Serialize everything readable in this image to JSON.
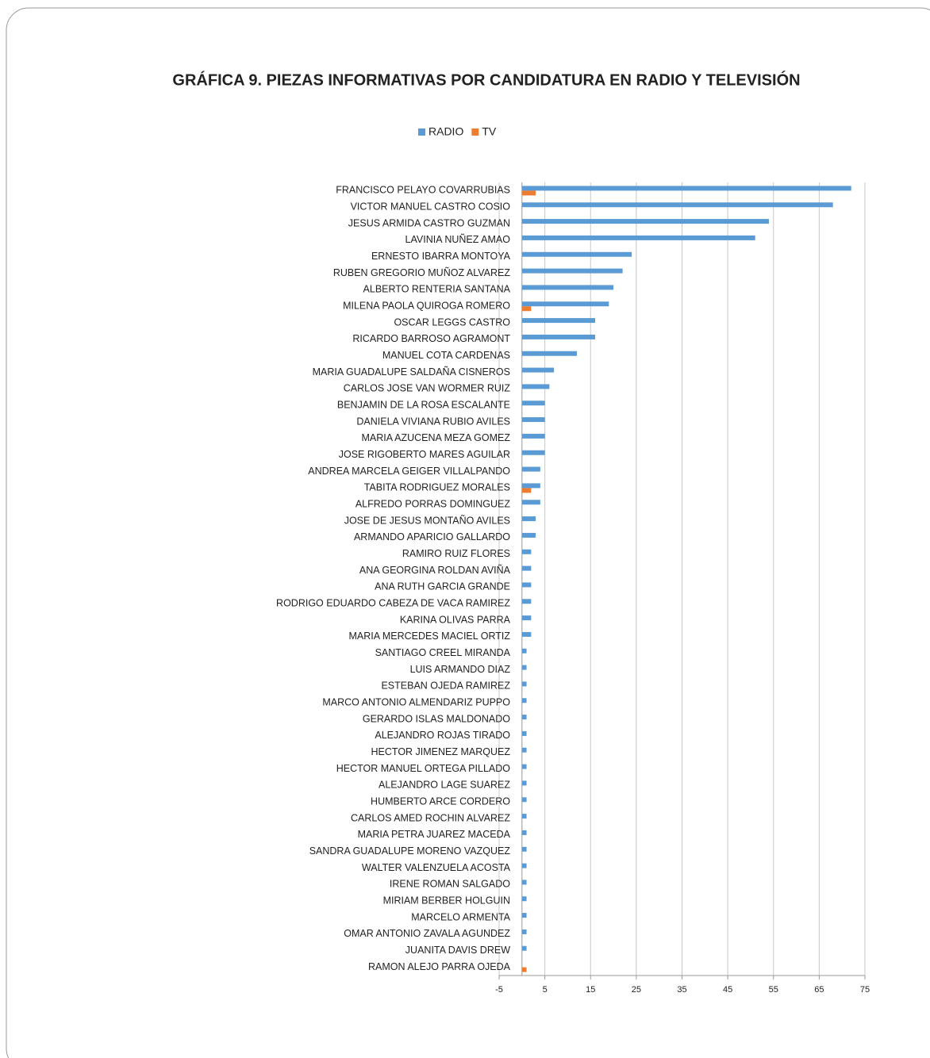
{
  "chart_data": {
    "type": "hbar",
    "title": "GRÁFICA 9. PIEZAS INFORMATIVAS POR CANDIDATURA EN RADIO Y TELEVISIÓN",
    "categories": [
      "FRANCISCO PELAYO COVARRUBIAS",
      "VICTOR MANUEL CASTRO COSIO",
      "JESUS ARMIDA CASTRO GUZMAN",
      "LAVINIA NUÑEZ AMAO",
      "ERNESTO IBARRA MONTOYA",
      "RUBEN GREGORIO MUÑOZ ALVAREZ",
      "ALBERTO RENTERIA SANTANA",
      "MILENA PAOLA QUIROGA ROMERO",
      "OSCAR LEGGS CASTRO",
      "RICARDO BARROSO AGRAMONT",
      "MANUEL COTA CARDENAS",
      "MARIA GUADALUPE SALDAÑA CISNEROS",
      "CARLOS JOSE VAN WORMER RUIZ",
      "BENJAMIN DE LA ROSA ESCALANTE",
      "DANIELA VIVIANA RUBIO AVILES",
      "MARIA AZUCENA MEZA GOMEZ",
      "JOSE RIGOBERTO MARES AGUILAR",
      "ANDREA MARCELA GEIGER VILLALPANDO",
      "TABITA RODRIGUEZ MORALES",
      "ALFREDO PORRAS DOMINGUEZ",
      "JOSE DE JESUS MONTAÑO AVILES",
      "ARMANDO APARICIO GALLARDO",
      "RAMIRO RUIZ FLORES",
      "ANA GEORGINA ROLDAN AVIÑA",
      "ANA RUTH GARCIA GRANDE",
      "RODRIGO EDUARDO CABEZA DE VACA RAMIREZ",
      "KARINA OLIVAS PARRA",
      "MARIA MERCEDES MACIEL ORTIZ",
      "SANTIAGO CREEL MIRANDA",
      "LUIS ARMANDO DIAZ",
      "ESTEBAN OJEDA RAMIREZ",
      "MARCO ANTONIO ALMENDARIZ PUPPO",
      "GERARDO ISLAS MALDONADO",
      "ALEJANDRO ROJAS TIRADO",
      "HECTOR JIMENEZ MARQUEZ",
      "HECTOR MANUEL ORTEGA PILLADO",
      "ALEJANDRO LAGE SUAREZ",
      "HUMBERTO ARCE CORDERO",
      "CARLOS AMED ROCHIN ALVAREZ",
      "MARIA PETRA JUAREZ MACEDA",
      "SANDRA GUADALUPE MORENO VAZQUEZ",
      "WALTER VALENZUELA ACOSTA",
      "IRENE ROMAN SALGADO",
      "MIRIAM BERBER HOLGUIN",
      "MARCELO ARMENTA",
      "OMAR ANTONIO ZAVALA AGUNDEZ",
      "JUANITA DAVIS DREW",
      "RAMON ALEJO PARRA OJEDA"
    ],
    "series": [
      {
        "name": "RADIO",
        "color": "#5b9bd5",
        "values": [
          72,
          68,
          54,
          51,
          24,
          22,
          20,
          19,
          16,
          16,
          12,
          7,
          6,
          5,
          5,
          5,
          5,
          4,
          4,
          4,
          3,
          3,
          2,
          2,
          2,
          2,
          2,
          2,
          1,
          1,
          1,
          1,
          1,
          1,
          1,
          1,
          1,
          1,
          1,
          1,
          1,
          1,
          1,
          1,
          1,
          1,
          1,
          0
        ]
      },
      {
        "name": "TV",
        "color": "#ed7d31",
        "values": [
          3,
          0,
          0,
          0,
          0,
          0,
          0,
          2,
          0,
          0,
          0,
          0,
          0,
          0,
          0,
          0,
          0,
          0,
          2,
          0,
          0,
          0,
          0,
          0,
          0,
          0,
          0,
          0,
          0,
          0,
          0,
          0,
          0,
          0,
          0,
          0,
          0,
          0,
          0,
          0,
          0,
          0,
          0,
          0,
          0,
          0,
          0,
          1
        ]
      }
    ],
    "xlim": [
      -5,
      75
    ],
    "xticks": [
      -5,
      5,
      15,
      25,
      35,
      45,
      55,
      65,
      75
    ],
    "grid": true,
    "legend": "top"
  }
}
